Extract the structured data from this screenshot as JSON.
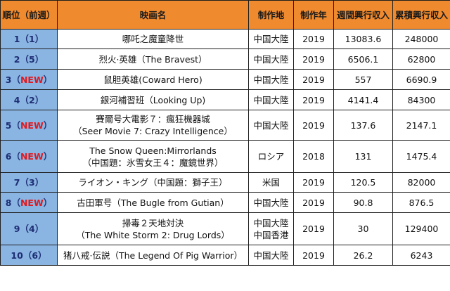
{
  "headers": [
    "順位（前週）",
    "映画名",
    "制作地",
    "制作年",
    "週間興行収入",
    "累積興行収入"
  ],
  "rows": [
    {
      "rank": "1",
      "prev": "1",
      "title": [
        "哪吒之魔童降世"
      ],
      "region": [
        "中国大陸"
      ],
      "year": "2019",
      "weekly": "13083.6",
      "total": "248000"
    },
    {
      "rank": "2",
      "prev": "5",
      "title": [
        "烈火·英雄（The Bravest）"
      ],
      "region": [
        "中国大陸"
      ],
      "year": "2019",
      "weekly": "6506.1",
      "total": "62800"
    },
    {
      "rank": "3",
      "prev": "NEW",
      "title": [
        "鼠胆英雄(Coward Hero)"
      ],
      "region": [
        "中国大陸"
      ],
      "year": "2019",
      "weekly": "557",
      "total": "6690.9"
    },
    {
      "rank": "4",
      "prev": "2",
      "title": [
        "銀河補習班（Looking Up)"
      ],
      "region": [
        "中国大陸"
      ],
      "year": "2019",
      "weekly": "4141.4",
      "total": "84300"
    },
    {
      "rank": "5",
      "prev": "NEW",
      "title": [
        "賽爾号大電影７：瘋狂機器城",
        "（Seer Movie 7: Crazy Intelligence）"
      ],
      "region": [
        "中国大陸"
      ],
      "year": "2019",
      "weekly": "137.6",
      "total": "2147.1"
    },
    {
      "rank": "6",
      "prev": "NEW",
      "title": [
        "The Snow Queen:Mirrorlands",
        "（中国題：氷雪女王４：魔鏡世界）"
      ],
      "region": [
        "ロシア"
      ],
      "year": "2018",
      "weekly": "131",
      "total": "1475.4"
    },
    {
      "rank": "7",
      "prev": "3",
      "title": [
        "ライオン・キング（中国題：獅子王）"
      ],
      "region": [
        "米国"
      ],
      "year": "2019",
      "weekly": "120.5",
      "total": "82000"
    },
    {
      "rank": "8",
      "prev": "NEW",
      "title": [
        "古田軍号（The Bugle from Gutian）"
      ],
      "region": [
        "中国大陸"
      ],
      "year": "2019",
      "weekly": "90.8",
      "total": "876.5"
    },
    {
      "rank": "9",
      "prev": "4",
      "title": [
        "掃毒２天地対決",
        "（The White Storm 2: Drug Lords）"
      ],
      "region": [
        "中国大陸",
        "中国香港"
      ],
      "year": "2019",
      "weekly": "30",
      "total": "129400"
    },
    {
      "rank": "10",
      "prev": "6",
      "title": [
        "猪八戒·伝説（The Legend Of Pig Warrior）"
      ],
      "region": [
        "中国大陸"
      ],
      "year": "2019",
      "weekly": "26.2",
      "total": "6243"
    }
  ]
}
